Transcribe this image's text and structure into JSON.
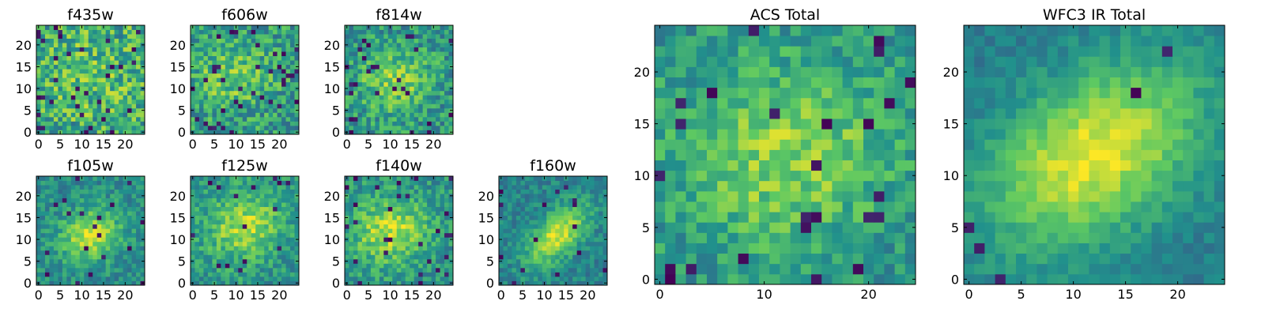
{
  "colormap": {
    "name": "viridis",
    "stops": [
      "#440154",
      "#3b528b",
      "#21918c",
      "#5ec962",
      "#fde725"
    ]
  },
  "chart_data": [
    {
      "type": "heatmap",
      "title": "f435w",
      "grid": [
        25,
        25
      ],
      "xlim": [
        0,
        24
      ],
      "ylim": [
        0,
        24
      ],
      "xticks": [
        0,
        5,
        10,
        15,
        20
      ],
      "yticks": [
        0,
        5,
        10,
        15,
        20
      ],
      "field": {
        "peak": [
          12,
          13
        ],
        "amplitude": 0.1,
        "sigma": [
          8,
          8
        ],
        "angle": 0,
        "base": 0.6,
        "noise": 0.26,
        "dark_fraction": 0.05,
        "seed": 11
      }
    },
    {
      "type": "heatmap",
      "title": "f606w",
      "grid": [
        25,
        25
      ],
      "xlim": [
        0,
        24
      ],
      "ylim": [
        0,
        24
      ],
      "xticks": [
        0,
        5,
        10,
        15,
        20
      ],
      "yticks": [
        0,
        5,
        10,
        15,
        20
      ],
      "field": {
        "peak": [
          9,
          13
        ],
        "amplitude": 0.22,
        "sigma": [
          6,
          5
        ],
        "angle": 0,
        "base": 0.55,
        "noise": 0.22,
        "dark_fraction": 0.05,
        "seed": 23
      }
    },
    {
      "type": "heatmap",
      "title": "f814w",
      "grid": [
        25,
        25
      ],
      "xlim": [
        0,
        24
      ],
      "ylim": [
        0,
        24
      ],
      "xticks": [
        0,
        5,
        10,
        15,
        20
      ],
      "yticks": [
        0,
        5,
        10,
        15,
        20
      ],
      "field": {
        "peak": [
          11,
          12
        ],
        "amplitude": 0.28,
        "sigma": [
          6,
          5
        ],
        "angle": 0,
        "base": 0.52,
        "noise": 0.2,
        "dark_fraction": 0.05,
        "seed": 37
      }
    },
    {
      "type": "heatmap",
      "title": "f105w",
      "grid": [
        25,
        25
      ],
      "xlim": [
        0,
        24
      ],
      "ylim": [
        0,
        24
      ],
      "xticks": [
        0,
        5,
        10,
        15,
        20
      ],
      "yticks": [
        0,
        5,
        10,
        15,
        20
      ],
      "field": {
        "peak": [
          12,
          11
        ],
        "amplitude": 0.42,
        "sigma": [
          5,
          4
        ],
        "angle": -0.4,
        "base": 0.48,
        "noise": 0.14,
        "dark_fraction": 0.03,
        "seed": 41
      }
    },
    {
      "type": "heatmap",
      "title": "f125w",
      "grid": [
        25,
        25
      ],
      "xlim": [
        0,
        24
      ],
      "ylim": [
        0,
        24
      ],
      "xticks": [
        0,
        5,
        10,
        15,
        20
      ],
      "yticks": [
        0,
        5,
        10,
        15,
        20
      ],
      "field": {
        "peak": [
          12,
          13
        ],
        "amplitude": 0.35,
        "sigma": [
          6,
          5
        ],
        "angle": -0.3,
        "base": 0.52,
        "noise": 0.16,
        "dark_fraction": 0.03,
        "seed": 53
      }
    },
    {
      "type": "heatmap",
      "title": "f140w",
      "grid": [
        25,
        25
      ],
      "xlim": [
        0,
        24
      ],
      "ylim": [
        0,
        24
      ],
      "xticks": [
        0,
        5,
        10,
        15,
        20
      ],
      "yticks": [
        0,
        5,
        10,
        15,
        20
      ],
      "field": {
        "peak": [
          10,
          12
        ],
        "amplitude": 0.38,
        "sigma": [
          6,
          5
        ],
        "angle": -0.3,
        "base": 0.52,
        "noise": 0.16,
        "dark_fraction": 0.04,
        "seed": 67
      }
    },
    {
      "type": "heatmap",
      "title": "f160w",
      "grid": [
        25,
        25
      ],
      "xlim": [
        0,
        24
      ],
      "ylim": [
        0,
        24
      ],
      "xticks": [
        0,
        5,
        10,
        15,
        20
      ],
      "yticks": [
        0,
        5,
        10,
        15,
        20
      ],
      "field": {
        "peak": [
          13,
          11
        ],
        "amplitude": 0.5,
        "sigma": [
          6,
          3
        ],
        "angle": -0.8,
        "base": 0.45,
        "noise": 0.12,
        "dark_fraction": 0.03,
        "seed": 79
      }
    },
    {
      "type": "heatmap",
      "title": "ACS Total",
      "grid": [
        25,
        25
      ],
      "xlim": [
        0,
        24
      ],
      "ylim": [
        0,
        24
      ],
      "xticks": [
        0,
        10,
        20
      ],
      "yticks": [
        0,
        5,
        10,
        15,
        20
      ],
      "field": {
        "peak": [
          12,
          12
        ],
        "amplitude": 0.3,
        "sigma": [
          7,
          6
        ],
        "angle": -0.3,
        "base": 0.52,
        "noise": 0.16,
        "dark_fraction": 0.04,
        "seed": 91
      }
    },
    {
      "type": "heatmap",
      "title": "WFC3 IR Total",
      "grid": [
        25,
        25
      ],
      "xlim": [
        0,
        24
      ],
      "ylim": [
        0,
        24
      ],
      "xticks": [
        0,
        5,
        10,
        15,
        20
      ],
      "yticks": [
        0,
        5,
        10,
        15,
        20
      ],
      "field": {
        "peak": [
          12,
          12
        ],
        "amplitude": 0.55,
        "sigma": [
          8,
          5
        ],
        "angle": -0.6,
        "base": 0.42,
        "noise": 0.08,
        "dark_fraction": 0.02,
        "seed": 103
      }
    }
  ]
}
